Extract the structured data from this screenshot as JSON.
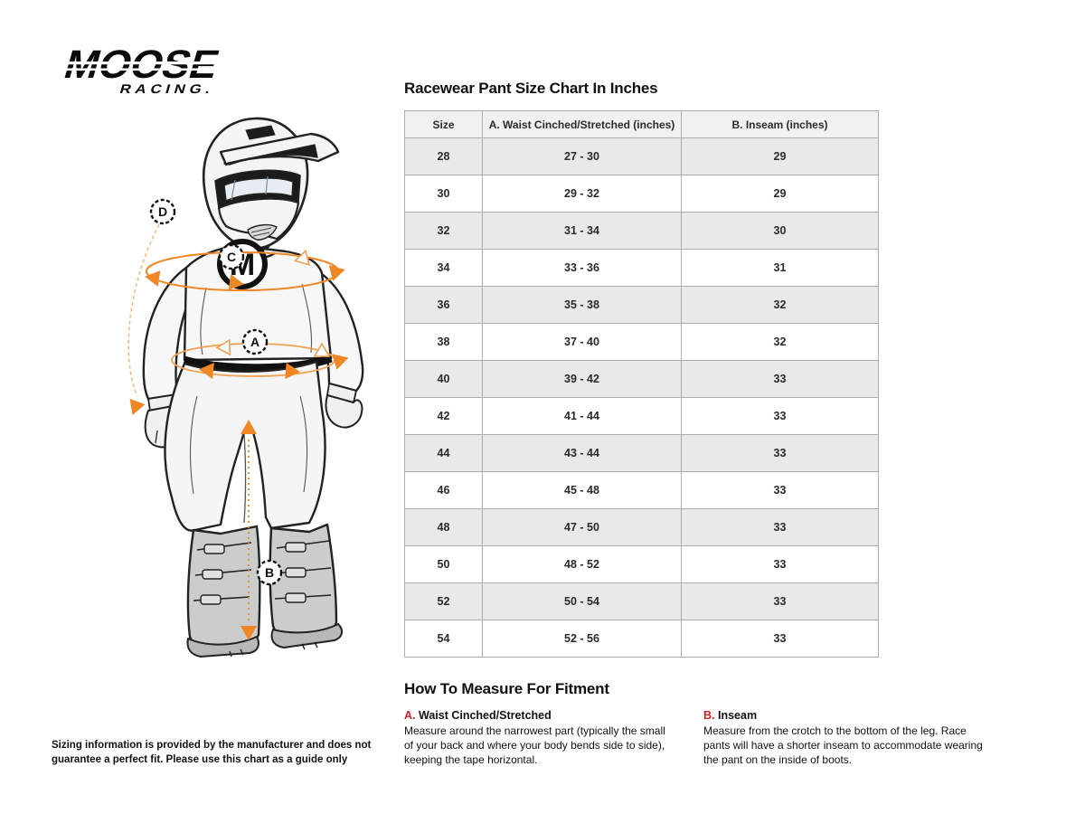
{
  "brand": {
    "name": "MOOSE",
    "sub": "RACING."
  },
  "size_chart": {
    "title": "Racewear Pant Size Chart In Inches",
    "columns": [
      "Size",
      "A. Waist Cinched/Stretched (inches)",
      "B. Inseam (inches)"
    ],
    "rows": [
      [
        "28",
        "27 - 30",
        "29"
      ],
      [
        "30",
        "29 - 32",
        "29"
      ],
      [
        "32",
        "31 - 34",
        "30"
      ],
      [
        "34",
        "33 - 36",
        "31"
      ],
      [
        "36",
        "35 - 38",
        "32"
      ],
      [
        "38",
        "37 - 40",
        "32"
      ],
      [
        "40",
        "39 - 42",
        "33"
      ],
      [
        "42",
        "41 - 44",
        "33"
      ],
      [
        "44",
        "43 - 44",
        "33"
      ],
      [
        "46",
        "45 - 48",
        "33"
      ],
      [
        "48",
        "47 - 50",
        "33"
      ],
      [
        "50",
        "48 - 52",
        "33"
      ],
      [
        "52",
        "50 - 54",
        "33"
      ],
      [
        "54",
        "52 - 56",
        "33"
      ]
    ]
  },
  "how_to_measure": {
    "title": "How To Measure For Fitment",
    "items": [
      {
        "letter": "A.",
        "label": "Waist Cinched/Stretched",
        "description": "Measure around the narrowest part (typically the small of your back and where your body bends side to side), keeping the tape horizontal."
      },
      {
        "letter": "B.",
        "label": "Inseam",
        "description": "Measure from the crotch to the bottom of the leg. Race pants will have a shorter inseam to accommodate wearing the pant on the inside of boots."
      }
    ]
  },
  "diagram": {
    "labels": {
      "waist": "A",
      "inseam": "B",
      "chest": "C",
      "sleeve": "D"
    }
  },
  "disclaimer": "Sizing information is provided by the manufacturer and does not guarantee a perfect fit. Please use this chart as a guide only",
  "colors": {
    "accent_orange": "#ef8724",
    "accent_orange_faint": "#f5bd85",
    "accent_red": "#cf2027",
    "header_bg": "#f1f1f1",
    "row_alt_bg": "#e9e9e9",
    "table_border": "#aaadad",
    "ink": "#1a1a1a"
  }
}
